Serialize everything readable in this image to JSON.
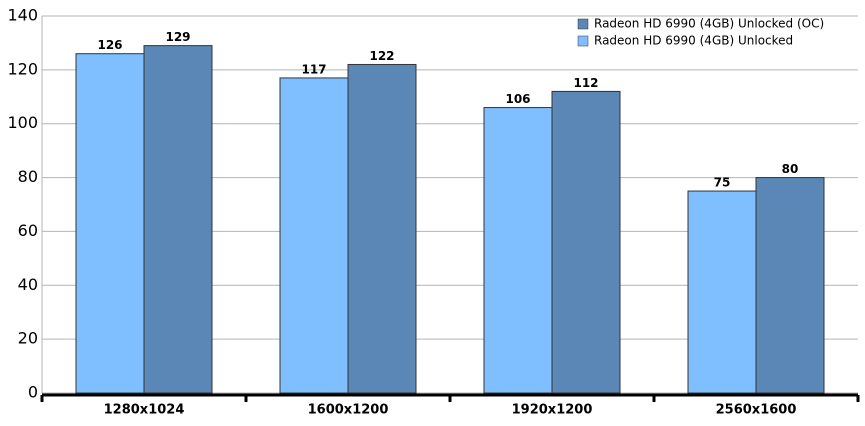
{
  "chart_data": {
    "type": "bar",
    "categories": [
      "1280x1024",
      "1600x1200",
      "1920x1200",
      "2560x1600"
    ],
    "series": [
      {
        "name": "Radeon HD 6990 (4GB) Unlocked",
        "color": "#80bfff",
        "values": [
          126,
          117,
          106,
          75
        ]
      },
      {
        "name": "Radeon HD 6990 (4GB) Unlocked (OC)",
        "color": "#5a87b5",
        "values": [
          129,
          122,
          112,
          80
        ]
      }
    ],
    "ylim": [
      0,
      140
    ],
    "yticks": [
      0,
      20,
      40,
      60,
      80,
      100,
      120,
      140
    ],
    "grid": true,
    "legend": "top-right"
  }
}
